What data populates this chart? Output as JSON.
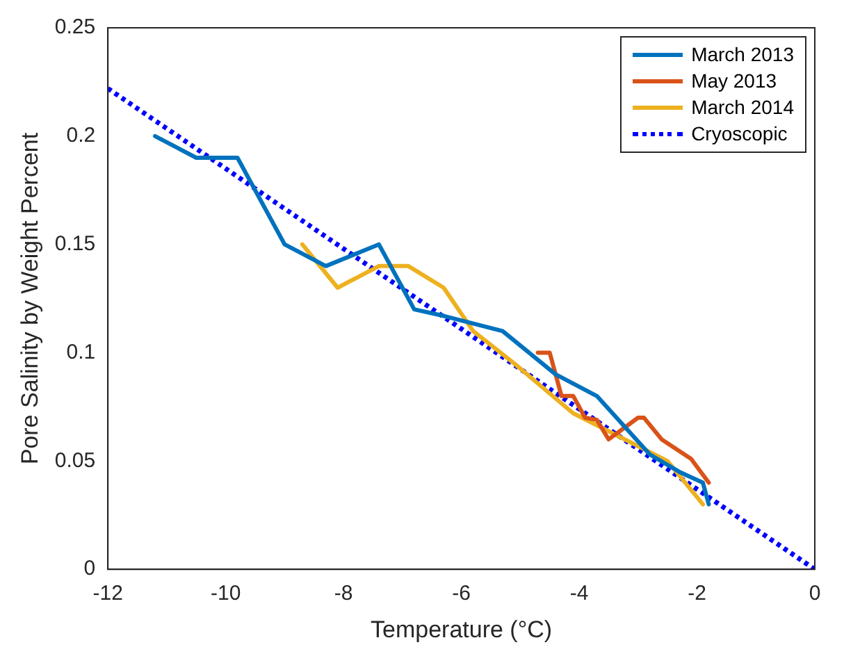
{
  "chart_data": {
    "type": "line",
    "xlabel": "Temperature (°C)",
    "ylabel": "Pore Salinity by Weight Percent",
    "xlim": [
      -12,
      0
    ],
    "xticks": [
      -12,
      -10,
      -8,
      -6,
      -4,
      -2,
      0
    ],
    "ylim": [
      0,
      0.25
    ],
    "yticks": [
      0,
      0.05,
      0.1,
      0.15,
      0.2,
      0.25
    ],
    "grid": false,
    "legend": "top right",
    "marker": "none",
    "series": [
      {
        "name": "March 2013",
        "color": "#0072bd",
        "x": [
          -11.2,
          -10.5,
          -9.8,
          -9,
          -8.3,
          -7.4,
          -6.8,
          -6.3,
          -5.3,
          -4.4,
          -3.7,
          -3.2,
          -2.8,
          -2.3,
          -1.9,
          -1.8
        ],
        "values": [
          0.2,
          0.19,
          0.19,
          0.15,
          0.14,
          0.15,
          0.12,
          0.117,
          0.11,
          0.09,
          0.08,
          0.065,
          0.053,
          0.045,
          0.04,
          0.03
        ]
      },
      {
        "name": "May 2013",
        "color": "#d95319",
        "x": [
          -4.7,
          -4.5,
          -4.3,
          -4.1,
          -3.9,
          -3.7,
          -3.5,
          -3.3,
          -3,
          -2.9,
          -2.6,
          -2.1,
          -1.8
        ],
        "values": [
          0.1,
          0.1,
          0.08,
          0.08,
          0.07,
          0.069,
          0.06,
          0.064,
          0.07,
          0.07,
          0.06,
          0.051,
          0.04
        ]
      },
      {
        "name": "March 2014",
        "color": "#edb120",
        "x": [
          -8.7,
          -8.1,
          -7.4,
          -6.9,
          -6.3,
          -5.8,
          -5.1,
          -4.1,
          -2.5,
          -1.9
        ],
        "values": [
          0.15,
          0.13,
          0.14,
          0.14,
          0.13,
          0.11,
          0.095,
          0.072,
          0.05,
          0.03
        ]
      },
      {
        "name": "Cryoscopic",
        "color": "#0000ff",
        "line_style": "dotted",
        "x": [
          -12,
          0
        ],
        "values": [
          0.222,
          0
        ]
      }
    ]
  }
}
